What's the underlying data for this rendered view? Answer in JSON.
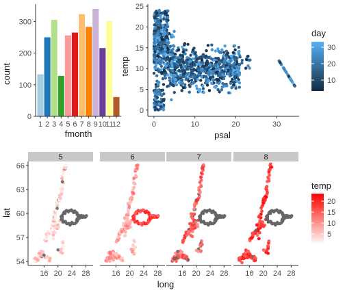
{
  "chart_data": [
    {
      "type": "bar",
      "xlabel": "fmonth",
      "ylabel": "count",
      "categories": [
        "1",
        "2",
        "3",
        "4",
        "5",
        "6",
        "7",
        "8",
        "9",
        "10",
        "11",
        "12"
      ],
      "values": [
        133,
        250,
        305,
        128,
        256,
        265,
        323,
        283,
        340,
        216,
        301,
        61
      ],
      "colors": [
        "#A6CEE3",
        "#1F78B4",
        "#B2DF8A",
        "#33A02C",
        "#FB9A99",
        "#E31A1C",
        "#FDBF6F",
        "#FF7F00",
        "#CAB2D6",
        "#6A3D9A",
        "#FFFF99",
        "#B15928"
      ],
      "ylim": [
        0,
        355
      ],
      "yticks": [
        0,
        100,
        200,
        300
      ]
    },
    {
      "type": "scatter",
      "xlabel": "psal",
      "ylabel": "temp",
      "xlim": [
        -1.5,
        35.5
      ],
      "ylim": [
        -1.5,
        25.5
      ],
      "xticks": [
        0,
        10,
        20,
        30
      ],
      "yticks": [
        0,
        5,
        10,
        15,
        20,
        25
      ],
      "color_by": "day",
      "legend": {
        "title": "day",
        "labels": [
          "30",
          "20",
          "10"
        ],
        "low_color": "#132B43",
        "high_color": "#56B1F7"
      }
    },
    {
      "type": "scatter",
      "facet_by": "month",
      "panels": [
        "5",
        "6",
        "7",
        "8"
      ],
      "xlabel": "long",
      "ylabel": "lat",
      "xticks": [
        "16",
        "20",
        "24",
        "28"
      ],
      "yticks": [
        "54",
        "57",
        "60",
        "63",
        "66"
      ],
      "xlim": [
        12,
        29.5
      ],
      "ylim": [
        53.5,
        66.5
      ],
      "color_by": "temp",
      "missing_color": "#666666",
      "legend": {
        "title": "temp",
        "labels": [
          "20",
          "15",
          "10",
          "5"
        ],
        "low_color": "#FFF5F0",
        "high_color": "#FF0000"
      }
    }
  ],
  "colors": {
    "strip_bg": "#C8C8C8",
    "axis": "#333333"
  }
}
